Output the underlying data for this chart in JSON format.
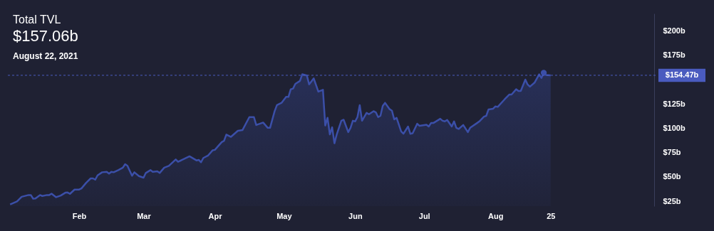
{
  "chart_data": {
    "type": "area",
    "title": "Total TVL",
    "subtitle": "$157.06b",
    "annotations": [
      "August 22, 2021"
    ],
    "x": [
      "2021-01-02",
      "2021-01-05",
      "2021-01-07",
      "2021-01-10",
      "2021-01-11",
      "2021-01-12",
      "2021-01-13",
      "2021-01-15",
      "2021-01-16",
      "2021-01-18",
      "2021-01-19",
      "2021-01-20",
      "2021-01-22",
      "2021-01-24",
      "2021-01-26",
      "2021-01-27",
      "2021-01-28",
      "2021-01-30",
      "2021-02-01",
      "2021-02-02",
      "2021-02-04",
      "2021-02-06",
      "2021-02-07",
      "2021-02-08",
      "2021-02-09",
      "2021-02-11",
      "2021-02-13",
      "2021-02-14",
      "2021-02-15",
      "2021-02-16",
      "2021-02-18",
      "2021-02-20",
      "2021-02-21",
      "2021-02-22",
      "2021-02-24",
      "2021-02-25",
      "2021-02-27",
      "2021-03-01",
      "2021-03-02",
      "2021-03-04",
      "2021-03-05",
      "2021-03-07",
      "2021-03-08",
      "2021-03-10",
      "2021-03-12",
      "2021-03-15",
      "2021-03-16",
      "2021-03-21",
      "2021-03-24",
      "2021-03-25",
      "2021-03-26",
      "2021-03-27",
      "2021-03-29",
      "2021-03-31",
      "2021-04-01",
      "2021-04-04",
      "2021-04-05",
      "2021-04-06",
      "2021-04-08",
      "2021-04-11",
      "2021-04-13",
      "2021-04-16",
      "2021-04-18",
      "2021-04-19",
      "2021-04-22",
      "2021-04-24",
      "2021-04-25",
      "2021-04-27",
      "2021-04-28",
      "2021-04-30",
      "2021-05-02",
      "2021-05-03",
      "2021-05-04",
      "2021-05-05",
      "2021-05-06",
      "2021-05-08",
      "2021-05-09",
      "2021-05-11",
      "2021-05-12",
      "2021-05-14",
      "2021-05-15",
      "2021-05-16",
      "2021-05-18",
      "2021-05-19",
      "2021-05-20",
      "2021-05-21",
      "2021-05-22",
      "2021-05-23",
      "2021-05-24",
      "2021-05-26",
      "2021-05-27",
      "2021-05-29",
      "2021-05-30",
      "2021-05-31",
      "2021-06-01",
      "2021-06-02",
      "2021-06-03",
      "2021-06-04",
      "2021-06-06",
      "2021-06-07",
      "2021-06-09",
      "2021-06-10",
      "2021-06-11",
      "2021-06-12",
      "2021-06-13",
      "2021-06-14",
      "2021-06-16",
      "2021-06-17",
      "2021-06-18",
      "2021-06-19",
      "2021-06-21",
      "2021-06-22",
      "2021-06-24",
      "2021-06-25",
      "2021-06-26",
      "2021-06-28",
      "2021-06-29",
      "2021-07-02",
      "2021-07-03",
      "2021-07-04",
      "2021-07-05",
      "2021-07-08",
      "2021-07-09",
      "2021-07-10",
      "2021-07-11",
      "2021-07-13",
      "2021-07-14",
      "2021-07-15",
      "2021-07-16",
      "2021-07-18",
      "2021-07-20",
      "2021-07-21",
      "2021-07-24",
      "2021-07-25",
      "2021-07-27",
      "2021-07-28",
      "2021-07-29",
      "2021-07-31",
      "2021-08-01",
      "2021-08-02",
      "2021-08-05",
      "2021-08-07",
      "2021-08-08",
      "2021-08-10",
      "2021-08-11",
      "2021-08-12",
      "2021-08-14",
      "2021-08-15",
      "2021-08-16",
      "2021-08-18",
      "2021-08-20",
      "2021-08-21",
      "2021-08-22",
      "2021-08-23",
      "2021-08-25"
    ],
    "series": [
      {
        "color": "#3b4fa8",
        "values": [
          21.8,
          24.8,
          29.6,
          31.4,
          31.4,
          27.7,
          27.9,
          31.4,
          30.4,
          31.4,
          31.4,
          32.8,
          29.2,
          30.9,
          33.8,
          34,
          32.6,
          37,
          37,
          38.2,
          43.8,
          48.5,
          48.5,
          47.2,
          51.6,
          54.8,
          55.3,
          53.4,
          55.3,
          54.8,
          57,
          59.5,
          63.1,
          61.4,
          51.2,
          54.8,
          50.9,
          49.2,
          54.1,
          57,
          55.3,
          55.8,
          54.1,
          59.5,
          61.4,
          68,
          65.5,
          71.2,
          67,
          67.5,
          65.1,
          69.5,
          71.9,
          77.3,
          77.8,
          85.9,
          87.1,
          93.5,
          91.2,
          97.4,
          98.1,
          111.5,
          111.5,
          103.4,
          105.9,
          100.5,
          100.5,
          117.6,
          123.8,
          126.2,
          132.3,
          132.3,
          140.1,
          140.8,
          145.7,
          148.7,
          155.5,
          154.3,
          145.2,
          151.3,
          144.5,
          137.7,
          139.6,
          102.9,
          110.8,
          93.7,
          101,
          84.6,
          93.7,
          107.8,
          108.8,
          96.1,
          100.5,
          107.8,
          107.1,
          111.5,
          123.8,
          107.8,
          115.9,
          114.4,
          117.6,
          116.4,
          111.5,
          112.8,
          123,
          126.2,
          119.6,
          118.1,
          109.1,
          110.8,
          96.8,
          94.4,
          101.8,
          94.4,
          94.9,
          104.7,
          102.5,
          103.7,
          101.8,
          105.4,
          105.4,
          109.8,
          107.8,
          107.1,
          108.6,
          101.8,
          107.1,
          100.5,
          99.3,
          103.4,
          96.1,
          100.5,
          105.4,
          107.1,
          112,
          112.8,
          119.4,
          120.1,
          122.5,
          122,
          129.8,
          134.7,
          134.7,
          140.1,
          138.4,
          138.4,
          150.1,
          145,
          142.8,
          146.9,
          155.5,
          151.8,
          157.06,
          154.8,
          154.47
        ]
      },
      {
        "type": "scatter",
        "color": "#3b4fa8",
        "x": [
          "2021-08-22"
        ],
        "values": [
          157.06
        ]
      }
    ],
    "xlim": [
      "2021-01-01",
      "2021-10-09"
    ],
    "xticks": [
      {
        "value": "2021-02-01",
        "label": "Feb"
      },
      {
        "value": "2021-03-01",
        "label": "Mar"
      },
      {
        "value": "2021-04-01",
        "label": "Apr"
      },
      {
        "value": "2021-05-01",
        "label": "May"
      },
      {
        "value": "2021-06-01",
        "label": "Jun"
      },
      {
        "value": "2021-07-01",
        "label": "Jul"
      },
      {
        "value": "2021-08-01",
        "label": "Aug"
      },
      {
        "value": "2021-08-25",
        "label": "25"
      }
    ],
    "ylim": [
      20,
      218
    ],
    "yticks": [
      {
        "value": 25,
        "label": "$25b"
      },
      {
        "value": 50,
        "label": "$50b"
      },
      {
        "value": 75,
        "label": "$75b"
      },
      {
        "value": 100,
        "label": "$100b"
      },
      {
        "value": 125,
        "label": "$125b"
      },
      {
        "value": 175,
        "label": "$175b"
      },
      {
        "value": 200,
        "label": "$200b"
      }
    ],
    "ref_lines": [
      {
        "axis": "y",
        "value": 154.47,
        "label": "$154.47b",
        "color": "#4a5bbf",
        "line_style": "dashed"
      }
    ],
    "grid": false
  }
}
